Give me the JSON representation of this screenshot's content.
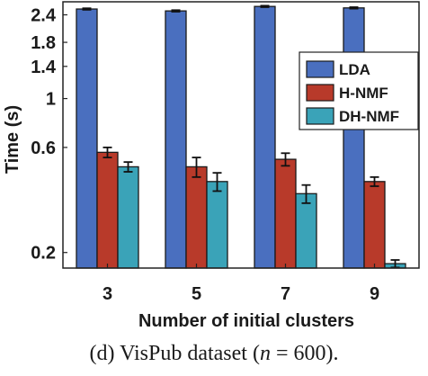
{
  "caption": {
    "prefix": "(d) VisPub dataset (",
    "var": "n",
    "suffix": " = 600)."
  },
  "chart_data": {
    "type": "bar",
    "xlabel": "Number of initial clusters",
    "ylabel": "Time (s)",
    "yscale": "log",
    "ylim": [
      0.17,
      2.75
    ],
    "yticks": [
      0.2,
      0.6,
      1,
      1.4,
      1.8,
      2.4
    ],
    "ytick_labels": [
      "0.2",
      "0.6",
      "1",
      "1.4",
      "1.8",
      "2.4"
    ],
    "categories": [
      "3",
      "5",
      "7",
      "9"
    ],
    "legend_position": "top-right",
    "series": [
      {
        "name": "LDA",
        "color": "#4a6fbf",
        "values": [
          2.55,
          2.5,
          2.62,
          2.58
        ],
        "errors": [
          0.02,
          0.02,
          0.02,
          0.02
        ]
      },
      {
        "name": "H-NMF",
        "color": "#b83a2a",
        "values": [
          0.57,
          0.49,
          0.53,
          0.42
        ],
        "errors": [
          0.03,
          0.05,
          0.035,
          0.02
        ]
      },
      {
        "name": "DH-NMF",
        "color": "#3aa3b8",
        "values": [
          0.49,
          0.42,
          0.37,
          0.178
        ],
        "errors": [
          0.025,
          0.04,
          0.035,
          0.007
        ]
      }
    ]
  }
}
